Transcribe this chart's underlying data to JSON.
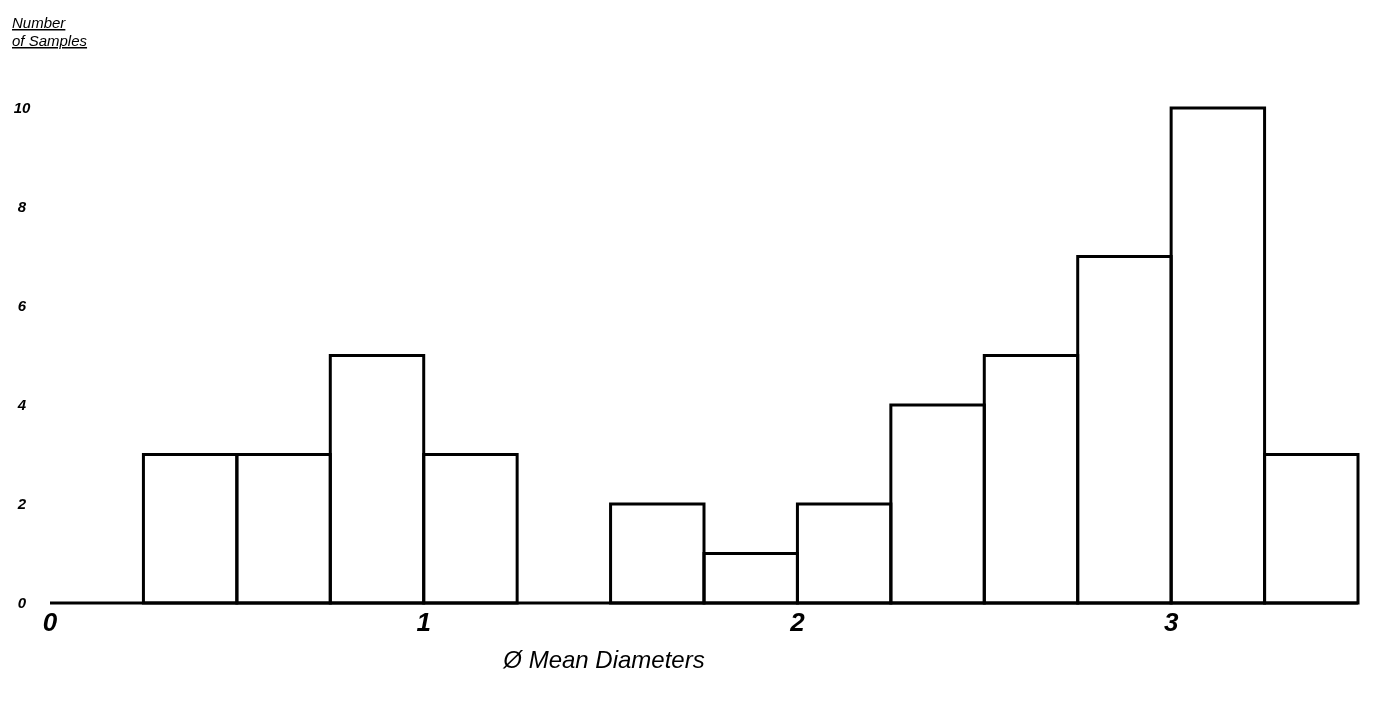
{
  "chart_data": {
    "type": "histogram",
    "xlabel": "Ø Mean Diameters",
    "ylabel": "Number of Samples",
    "bins": [
      0.25,
      0.5,
      0.75,
      1.0,
      1.25,
      1.5,
      1.75,
      2.0,
      2.25,
      2.5,
      2.75,
      3.0,
      3.25,
      3.5
    ],
    "values": [
      3,
      3,
      5,
      3,
      0,
      2,
      1,
      2,
      4,
      5,
      7,
      10,
      3
    ],
    "color": "#000000",
    "xlim": [
      0,
      3.5
    ],
    "xticks": [
      0,
      1,
      2,
      3
    ],
    "ylim": [
      0,
      10
    ],
    "yticks": [
      0,
      2,
      4,
      6,
      8,
      10
    ],
    "grid": false
  }
}
